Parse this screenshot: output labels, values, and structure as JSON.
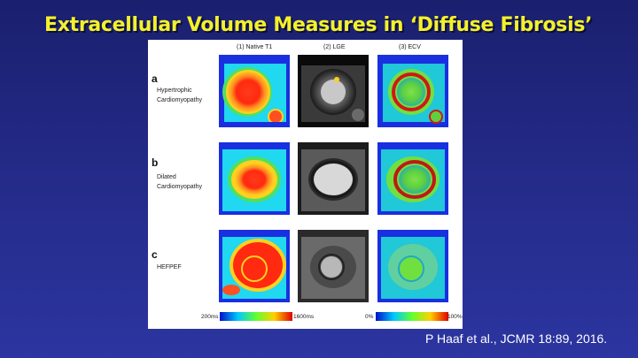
{
  "slide": {
    "title": "Extracellular Volume Measures  in ‘Diffuse Fibrosis’",
    "citation": "P Haaf et al., JCMR 18:89, 2016."
  },
  "figure": {
    "columns": [
      "(1) Native T1",
      "(2) LGE",
      "(3) ECV"
    ],
    "rows": [
      {
        "letter": "a",
        "lines": [
          "Hypertrophic",
          "Cardiomyopathy"
        ]
      },
      {
        "letter": "b",
        "lines": [
          "Dilated",
          "Cardiomyopathy"
        ]
      },
      {
        "letter": "c",
        "lines": [
          "HEFPEF"
        ]
      }
    ],
    "colorbars": {
      "t1": {
        "min": "200ms",
        "max": "1600ms"
      },
      "ecv": {
        "min": "0%",
        "max": "100%"
      }
    }
  }
}
